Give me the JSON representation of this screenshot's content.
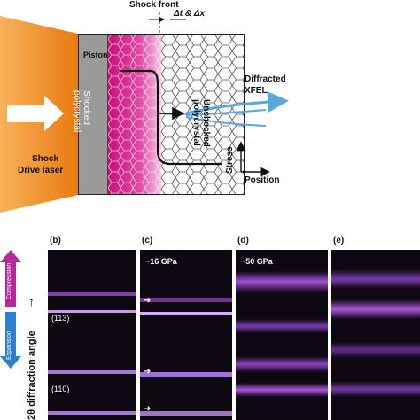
{
  "schematic": {
    "shock_front": "Shock front",
    "dt_dx": "Δt & Δx",
    "piston": "Piston",
    "shocked": "Shocked polycrystal",
    "unshocked": "Unshocked polycrystal",
    "diffracted": "Diffracted",
    "xfel": "XFEL",
    "shock": "Shock",
    "drive_laser": "Drive laser",
    "stress": "Stress",
    "position": "Position"
  },
  "panels": {
    "b": "(b)",
    "c": "(c)",
    "d": "(d)",
    "e": "(e)",
    "c_pressure": "~16 GPa",
    "d_pressure": "~50 GPa",
    "peak_113": "(113)",
    "peak_110": "(110)"
  },
  "legend": {
    "compression": "Compression",
    "expansion": "Expansion",
    "axis": "2θ diffraction angle"
  },
  "colors": {
    "laser": "#f0901e",
    "piston": "#9a9a9a",
    "shocked": "#d8208c",
    "xfel": "#5aa8dc",
    "compression": "#b3289a",
    "expansion": "#2f7fd0"
  }
}
